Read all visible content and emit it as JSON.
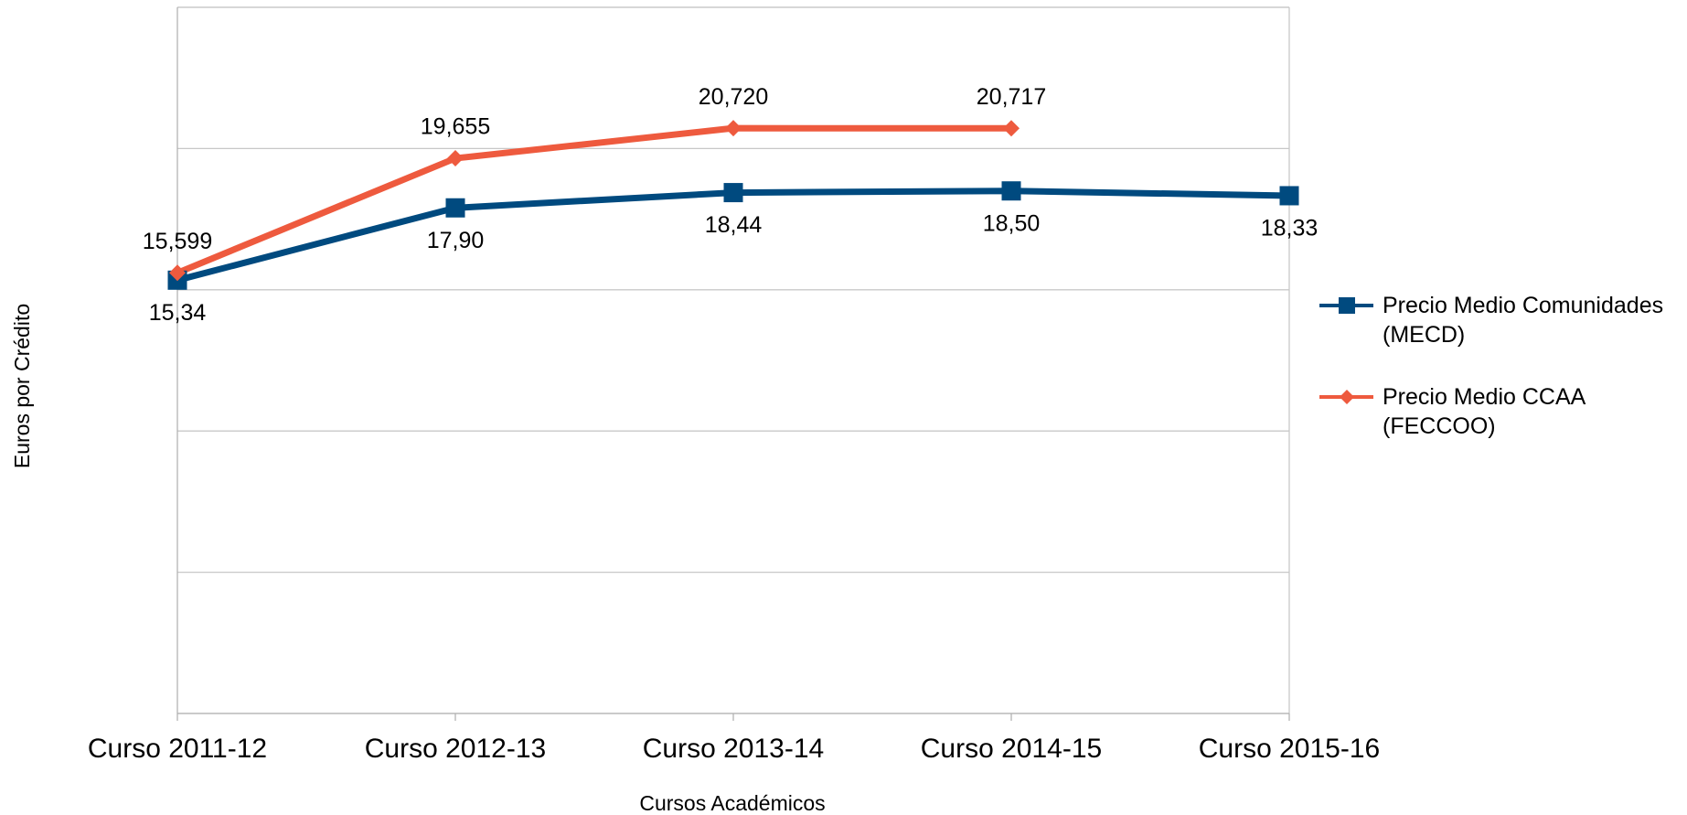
{
  "chart_data": {
    "type": "line",
    "x_label": "Cursos Académicos",
    "y_label": "Euros por Crédito",
    "categories": [
      "Curso 2011-12",
      "Curso 2012-13",
      "Curso 2013-14",
      "Curso 2014-15",
      "Curso 2015-16"
    ],
    "series": [
      {
        "name": "Precio Medio Comunidades (MECD)",
        "color": "#004a7f",
        "marker": "square",
        "values": [
          15.34,
          17.9,
          18.44,
          18.5,
          18.33
        ],
        "value_labels": [
          "15,34",
          "17,90",
          "18,44",
          "18,50",
          "18,33"
        ]
      },
      {
        "name": "Precio Medio CCAA (FECCOO)",
        "color": "#ee5a3e",
        "marker": "diamond",
        "values": [
          15.599,
          19.655,
          20.72,
          20.717,
          null
        ],
        "value_labels": [
          "15,599",
          "19,655",
          "20,720",
          "20,717",
          null
        ]
      }
    ],
    "ylim": [
      0,
      25
    ],
    "yticks": [
      0,
      5,
      10,
      15,
      20,
      25
    ],
    "grid": true,
    "legend": "right"
  }
}
